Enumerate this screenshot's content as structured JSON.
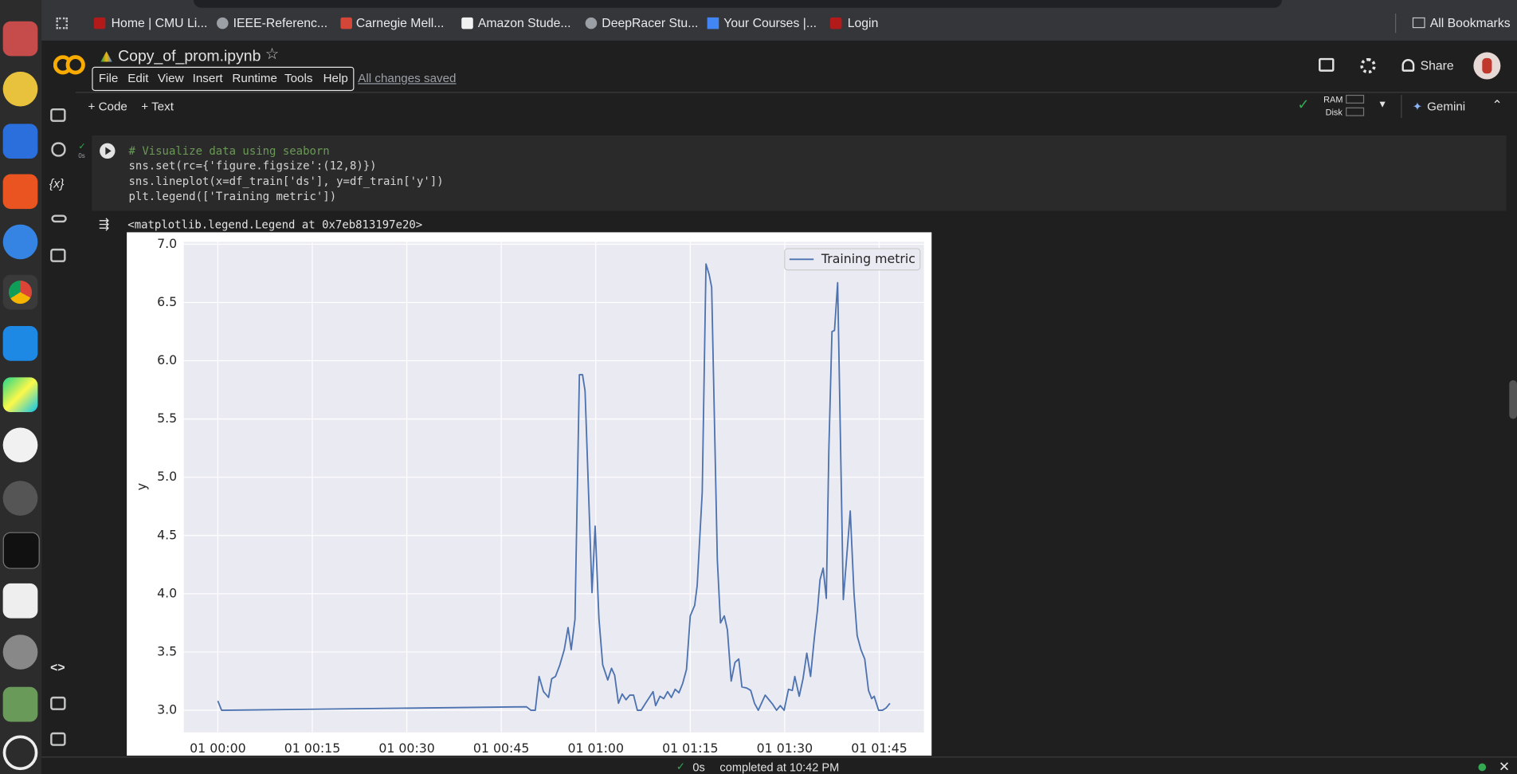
{
  "browser": {
    "bookmarks": [
      "Home | CMU Li...",
      "IEEE-Referenc...",
      "Carnegie Mell...",
      "Amazon Stude...",
      "DeepRacer Stu...",
      "Your Courses |...",
      "Login"
    ],
    "all_bookmarks": "All Bookmarks"
  },
  "notebook": {
    "title": "Copy_of_prom.ipynb",
    "menu": [
      "File",
      "Edit",
      "View",
      "Insert",
      "Runtime",
      "Tools",
      "Help"
    ],
    "save_status": "All changes saved",
    "share": "Share"
  },
  "toolbar": {
    "add_code": "Code",
    "add_text": "Text",
    "ram": "RAM",
    "disk": "Disk",
    "gemini": "Gemini"
  },
  "sidebar": {
    "variables": "{x}"
  },
  "cell": {
    "exec_time": "0s",
    "code": [
      "# Visualize data using seaborn",
      "sns.set(rc={'figure.figsize':(12,8)})",
      "sns.lineplot(x=df_train['ds'], y=df_train['y'])",
      "plt.legend(['Training metric'])"
    ]
  },
  "output": {
    "text": "<matplotlib.legend.Legend at 0x7eb813197e20>"
  },
  "chart_data": {
    "type": "line",
    "ylabel": "y",
    "x": [
      0,
      0.6,
      49,
      49.7,
      50.4,
      51,
      51.7,
      52.5,
      53,
      53.6,
      54.3,
      55,
      55.6,
      56.1,
      56.7,
      57.4,
      57.9,
      58.3,
      59.4,
      59.9,
      60.5,
      61.1,
      61.9,
      62.5,
      63,
      63.6,
      64.2,
      64.8,
      65.4,
      66,
      66.6,
      67.2,
      67.9,
      68.5,
      69.1,
      69.5,
      70.2,
      70.8,
      71.4,
      72,
      72.6,
      73.2,
      73.8,
      74.4,
      75,
      75.7,
      76.1,
      76.9,
      77.5,
      78,
      78.4,
      79.3,
      79.8,
      80.4,
      80.9,
      81.5,
      82.1,
      82.7,
      83.2,
      84,
      84.6,
      85.2,
      85.8,
      86.9,
      87.5,
      88.1,
      88.7,
      89.3,
      89.9,
      90.6,
      91.2,
      91.6,
      92.3,
      92.9,
      93.5,
      94.1,
      94.7,
      95.2,
      95.6,
      96.1,
      96.6,
      97,
      97.5,
      97.9,
      98.4,
      99.3,
      99.8,
      100.4,
      101,
      101.5,
      102.1,
      102.7,
      103.3,
      103.8,
      104.2,
      104.9,
      105.5,
      106.1,
      106.7
    ],
    "series": [
      {
        "name": "Training metric",
        "color": "#4c72b0",
        "values": [
          3.08,
          3.0,
          3.03,
          3.0,
          3.0,
          3.29,
          3.16,
          3.11,
          3.27,
          3.29,
          3.39,
          3.52,
          3.71,
          3.52,
          3.78,
          5.88,
          5.88,
          5.74,
          4.01,
          4.58,
          3.79,
          3.39,
          3.26,
          3.36,
          3.3,
          3.06,
          3.14,
          3.09,
          3.13,
          3.13,
          3.0,
          3.0,
          3.06,
          3.11,
          3.16,
          3.04,
          3.12,
          3.1,
          3.16,
          3.11,
          3.18,
          3.15,
          3.23,
          3.35,
          3.81,
          3.9,
          4.07,
          4.87,
          6.83,
          6.74,
          6.63,
          4.29,
          3.75,
          3.81,
          3.69,
          3.25,
          3.41,
          3.44,
          3.2,
          3.19,
          3.17,
          3.06,
          3.0,
          3.13,
          3.09,
          3.05,
          3.0,
          3.04,
          3.0,
          3.18,
          3.17,
          3.29,
          3.12,
          3.27,
          3.49,
          3.29,
          3.62,
          3.86,
          4.12,
          4.22,
          3.96,
          5.23,
          6.25,
          6.26,
          6.67,
          3.95,
          4.29,
          4.71,
          4.0,
          3.64,
          3.52,
          3.44,
          3.17,
          3.1,
          3.12,
          3.0,
          3.0,
          3.02,
          3.06
        ]
      }
    ],
    "xlim": [
      -5.4,
      112.1
    ],
    "xticks": [
      {
        "value": 0,
        "label": "01 00:00"
      },
      {
        "value": 15,
        "label": "01 00:15"
      },
      {
        "value": 30,
        "label": "01 00:30"
      },
      {
        "value": 45,
        "label": "01 00:45"
      },
      {
        "value": 60,
        "label": "01 01:00"
      },
      {
        "value": 75,
        "label": "01 01:15"
      },
      {
        "value": 90,
        "label": "01 01:30"
      },
      {
        "value": 105,
        "label": "01 01:45"
      }
    ],
    "ylim": [
      2.81,
      7.02
    ],
    "yticks": [
      {
        "value": 3,
        "label": "3.0"
      },
      {
        "value": 3.5,
        "label": "3.5"
      },
      {
        "value": 4,
        "label": "4.0"
      },
      {
        "value": 4.5,
        "label": "4.5"
      },
      {
        "value": 5,
        "label": "5.0"
      },
      {
        "value": 5.5,
        "label": "5.5"
      },
      {
        "value": 6,
        "label": "6.0"
      },
      {
        "value": 6.5,
        "label": "6.5"
      },
      {
        "value": 7,
        "label": "7.0"
      }
    ],
    "grid": true,
    "legend": "upper right"
  },
  "status": {
    "time": "0s",
    "message": "completed at 10:42 PM"
  }
}
